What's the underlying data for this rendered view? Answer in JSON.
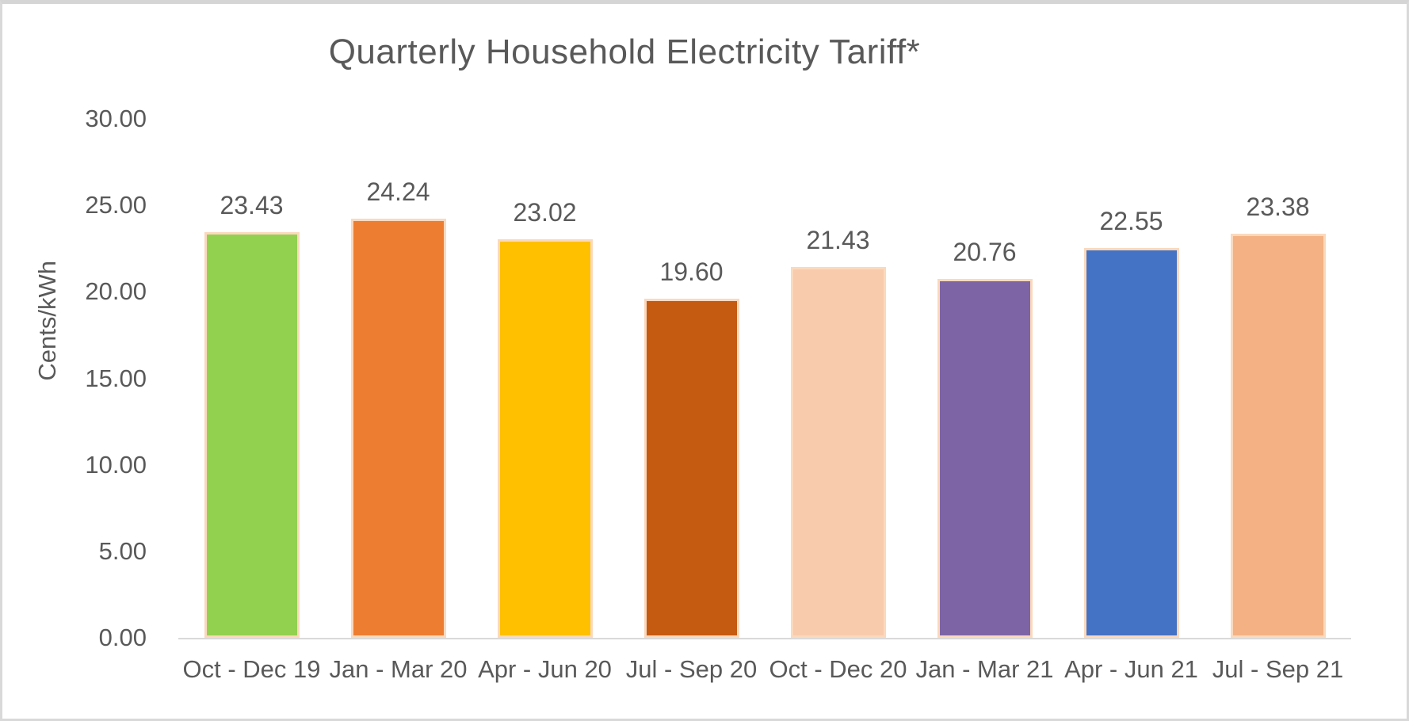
{
  "title": "Quarterly Household Electricity Tariff*",
  "chart_data": {
    "type": "bar",
    "title": "Quarterly Household Electricity Tariff*",
    "categories": [
      "Oct - Dec 19",
      "Jan - Mar 20",
      "Apr - Jun 20",
      "Jul - Sep 20",
      "Oct - Dec 20",
      "Jan - Mar 21",
      "Apr - Jun 21",
      "Jul - Sep 21"
    ],
    "values": [
      23.43,
      24.24,
      23.02,
      19.6,
      21.43,
      20.76,
      22.55,
      23.38
    ],
    "data_labels": [
      "23.43",
      "24.24",
      "23.02",
      "19.60",
      "21.43",
      "20.76",
      "22.55",
      "23.38"
    ],
    "xlabel": "",
    "ylabel": "Cents/kWh",
    "ylim": [
      0,
      30
    ],
    "ytick_step": 5,
    "yticks": [
      "30.00",
      "25.00",
      "20.00",
      "15.00",
      "10.00",
      "5.00",
      "0.00"
    ],
    "grid": false,
    "legend_position": "none",
    "bar_colors": [
      "#92d050",
      "#ed7d31",
      "#ffc000",
      "#c55a11",
      "#f8cbad",
      "#7d64a5",
      "#4472c4",
      "#f4b183"
    ],
    "bar_border_color": "#fbd9bd",
    "axis_line_color": "#d9d9d9",
    "text_color": "#595959"
  }
}
